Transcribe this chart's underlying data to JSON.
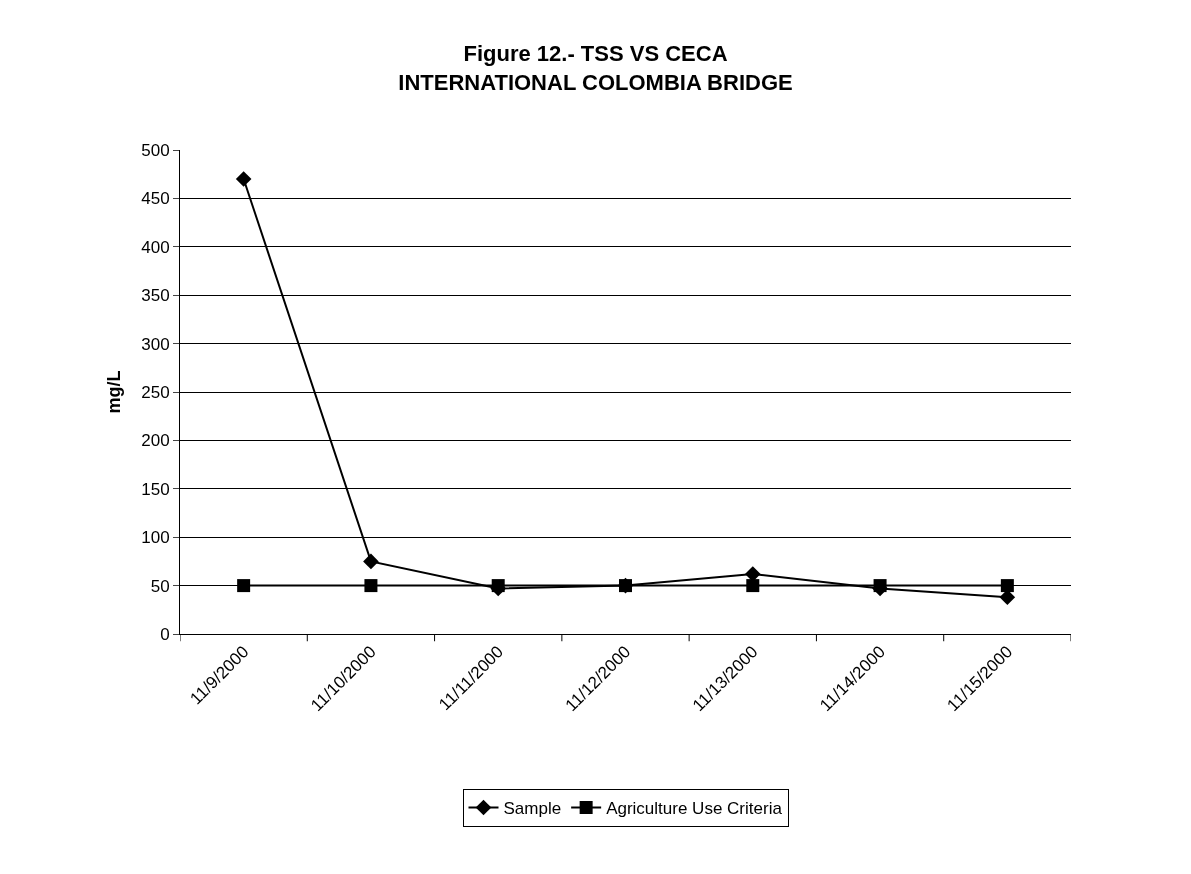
{
  "chart_data": {
    "type": "line",
    "title": "Figure 12.- TSS VS CECA\nINTERNATIONAL COLOMBIA BRIDGE",
    "ylabel": "mg/L",
    "categories": [
      "11/9/2000",
      "11/10/2000",
      "11/11/2000",
      "11/12/2000",
      "11/13/2000",
      "11/14/2000",
      "11/15/2000"
    ],
    "series": [
      {
        "name": "Sample",
        "color": "#000000",
        "marker": "diamond",
        "values": [
          470,
          75,
          47,
          50,
          62,
          47,
          38
        ]
      },
      {
        "name": "Agriculture Use Criteria",
        "color": "#000000",
        "marker": "square",
        "values": [
          50,
          50,
          50,
          50,
          50,
          50,
          50
        ]
      }
    ],
    "ylim": [
      0,
      500
    ],
    "yticks": [
      0,
      50,
      100,
      150,
      200,
      250,
      300,
      350,
      400,
      450,
      500
    ],
    "grid": "y",
    "legend": "bottom",
    "line_style": "solid"
  }
}
